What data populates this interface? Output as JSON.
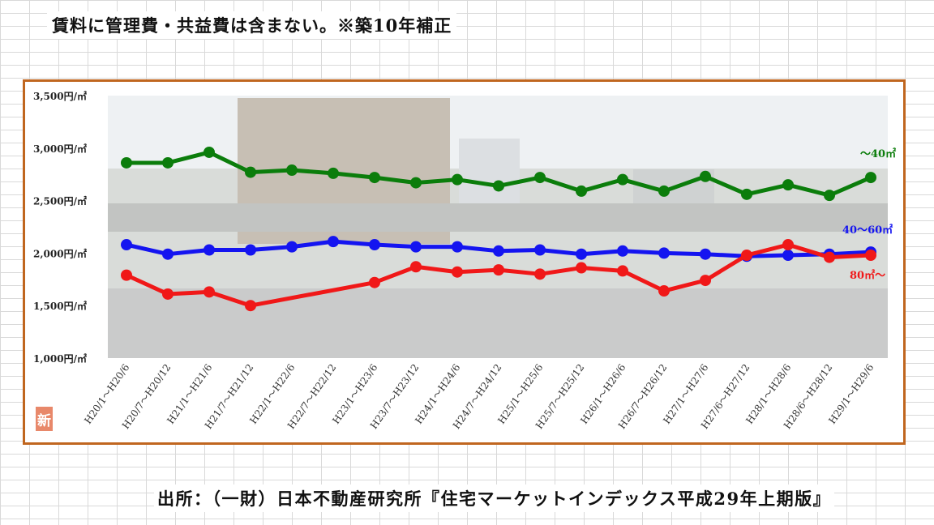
{
  "header": {
    "note": "賃料に管理費・共益費は含まない。※築10年補正"
  },
  "footer": {
    "source": "出所：（一財）日本不動産研究所『住宅マーケットインデックス平成29年上期版』"
  },
  "badge": {
    "label": "新"
  },
  "chart_data": {
    "type": "line",
    "title": "",
    "xlabel": "",
    "ylabel": "",
    "ylim": [
      1000,
      3500
    ],
    "y_ticks": [
      "1,000円/㎡",
      "1,500円/㎡",
      "2,000円/㎡",
      "2,500円/㎡",
      "3,000円/㎡",
      "3,500円/㎡"
    ],
    "y_tick_values": [
      1000,
      1500,
      2000,
      2500,
      3000,
      3500
    ],
    "categories": [
      "H20/1～H20/6",
      "H20/7～H20/12",
      "H21/1～H21/6",
      "H21/7～H21/12",
      "H22/1～H22/6",
      "H22/7～H22/12",
      "H23/1～H23/6",
      "H23/7～H23/12",
      "H24/1～H24/6",
      "H24/7～H24/12",
      "H25/1～H25/6",
      "H25/7～H25/12",
      "H26/1～H26/6",
      "H26/7～H26/12",
      "H27/1～H27/6",
      "H27/6～H27/12",
      "H28/1～H28/6",
      "H28/6～H28/12",
      "H29/1～H29/6"
    ],
    "grid": false,
    "series": [
      {
        "name": "～40㎡",
        "color": "#0b7d0b",
        "values": [
          2860,
          2860,
          2960,
          2770,
          2790,
          2760,
          2720,
          2670,
          2700,
          2640,
          2720,
          2590,
          2700,
          2590,
          2730,
          2560,
          2650,
          2550,
          2720
        ]
      },
      {
        "name": "40～60㎡",
        "color": "#1414f0",
        "values": [
          2080,
          1990,
          2030,
          2030,
          2060,
          2110,
          2080,
          2060,
          2060,
          2020,
          2030,
          1990,
          2020,
          2000,
          1990,
          1970,
          1980,
          1990,
          2010
        ]
      },
      {
        "name": "80㎡～",
        "color": "#f01818",
        "values": [
          1790,
          1610,
          1630,
          1500,
          null,
          null,
          1720,
          1870,
          1820,
          1840,
          1800,
          1860,
          1830,
          1640,
          1740,
          1980,
          2080,
          1960,
          1980
        ]
      }
    ]
  }
}
